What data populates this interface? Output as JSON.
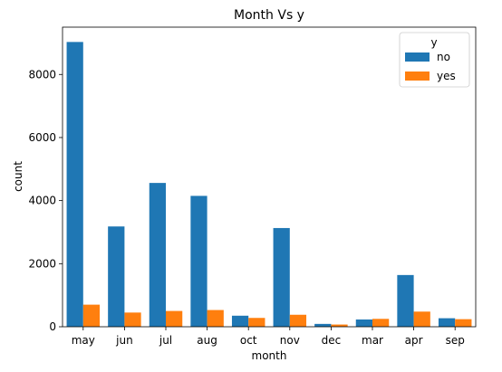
{
  "chart_data": {
    "type": "bar",
    "title": "Month Vs y",
    "xlabel": "month",
    "ylabel": "count",
    "ylim": [
      0,
      9500
    ],
    "yticks": [
      0,
      2000,
      4000,
      6000,
      8000
    ],
    "grid": false,
    "legend": {
      "title": "y",
      "placement": "top-right"
    },
    "categories": [
      "may",
      "jun",
      "jul",
      "aug",
      "oct",
      "nov",
      "dec",
      "mar",
      "apr",
      "sep"
    ],
    "series": [
      {
        "name": "no",
        "color": "#1f77b4",
        "values": [
          9030,
          3180,
          4560,
          4150,
          350,
          3130,
          90,
          230,
          1640,
          270
        ]
      },
      {
        "name": "yes",
        "color": "#ff7f0e",
        "values": [
          700,
          450,
          500,
          530,
          280,
          380,
          70,
          250,
          480,
          240
        ]
      }
    ]
  }
}
